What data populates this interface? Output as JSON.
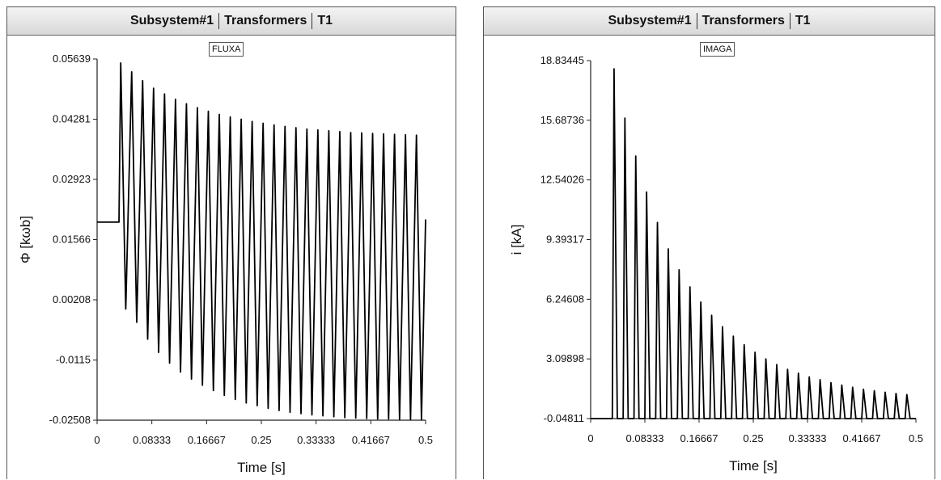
{
  "charts": [
    {
      "header": {
        "part1": "Subsystem#1",
        "part2": "Transformers",
        "part3": "T1"
      },
      "legend": "FLUXA",
      "xlabel": "Time [s]",
      "ylabel": "Φ [kωb]",
      "yticks": [
        "0.05639",
        "0.04281",
        "0.02923",
        "0.01566",
        "0.00208",
        "-0.0115",
        "-0.02508"
      ],
      "xticks": [
        "0",
        "0.08333",
        "0.16667",
        "0.25",
        "0.33333",
        "0.41667",
        "0.5"
      ]
    },
    {
      "header": {
        "part1": "Subsystem#1",
        "part2": "Transformers",
        "part3": "T1"
      },
      "legend": "IMAGA",
      "xlabel": "Time [s]",
      "ylabel": "i [kA]",
      "yticks": [
        "18.83445",
        "15.68736",
        "12.54026",
        "9.39317",
        "6.24608",
        "3.09898",
        "-0.04811"
      ],
      "xticks": [
        "0",
        "0.08333",
        "0.16667",
        "0.25",
        "0.33333",
        "0.41667",
        "0.5"
      ]
    }
  ],
  "chart_data": [
    {
      "type": "line",
      "title": "FLUXA",
      "xlabel": "Time [s]",
      "ylabel": "Φ [kωb]",
      "xlim": [
        0,
        0.5
      ],
      "ylim": [
        -0.02508,
        0.05639
      ],
      "series": [
        {
          "name": "FLUXA",
          "line_color": "#000000",
          "period": 0.01667,
          "start_time": 0.0333,
          "pre_start_value": 0.0196,
          "peaks": [
            0.0555,
            0.0535,
            0.0515,
            0.0498,
            0.0485,
            0.0473,
            0.0463,
            0.0454,
            0.0446,
            0.0439,
            0.0433,
            0.0428,
            0.0423,
            0.0419,
            0.0415,
            0.0412,
            0.0409,
            0.0406,
            0.0404,
            0.0402,
            0.04,
            0.0398,
            0.0397,
            0.0396,
            0.0395,
            0.0394,
            0.0393,
            0.0392
          ],
          "troughs": [
            -0.0,
            -0.003,
            -0.0068,
            -0.0098,
            -0.0122,
            -0.0142,
            -0.0158,
            -0.0172,
            -0.0184,
            -0.0195,
            -0.0204,
            -0.0212,
            -0.0218,
            -0.0224,
            -0.0229,
            -0.0233,
            -0.0236,
            -0.0239,
            -0.0241,
            -0.0243,
            -0.0245,
            -0.0246,
            -0.0247,
            -0.0248,
            -0.0248,
            -0.0249,
            -0.0249,
            -0.025
          ],
          "end_value": 0.0202
        }
      ]
    },
    {
      "type": "line",
      "title": "IMAGA",
      "xlabel": "Time [s]",
      "ylabel": "i [kA]",
      "xlim": [
        0,
        0.5
      ],
      "ylim": [
        -0.04811,
        18.83445
      ],
      "series": [
        {
          "name": "IMAGA",
          "line_color": "#000000",
          "period": 0.01667,
          "start_time": 0.0333,
          "baseline": -0.04811,
          "peaks": [
            18.4,
            15.8,
            13.8,
            11.9,
            10.3,
            8.9,
            7.8,
            6.9,
            6.1,
            5.4,
            4.8,
            4.3,
            3.85,
            3.45,
            3.1,
            2.8,
            2.55,
            2.35,
            2.15,
            2.0,
            1.85,
            1.72,
            1.6,
            1.5,
            1.42,
            1.34,
            1.28,
            1.22
          ]
        }
      ]
    }
  ]
}
